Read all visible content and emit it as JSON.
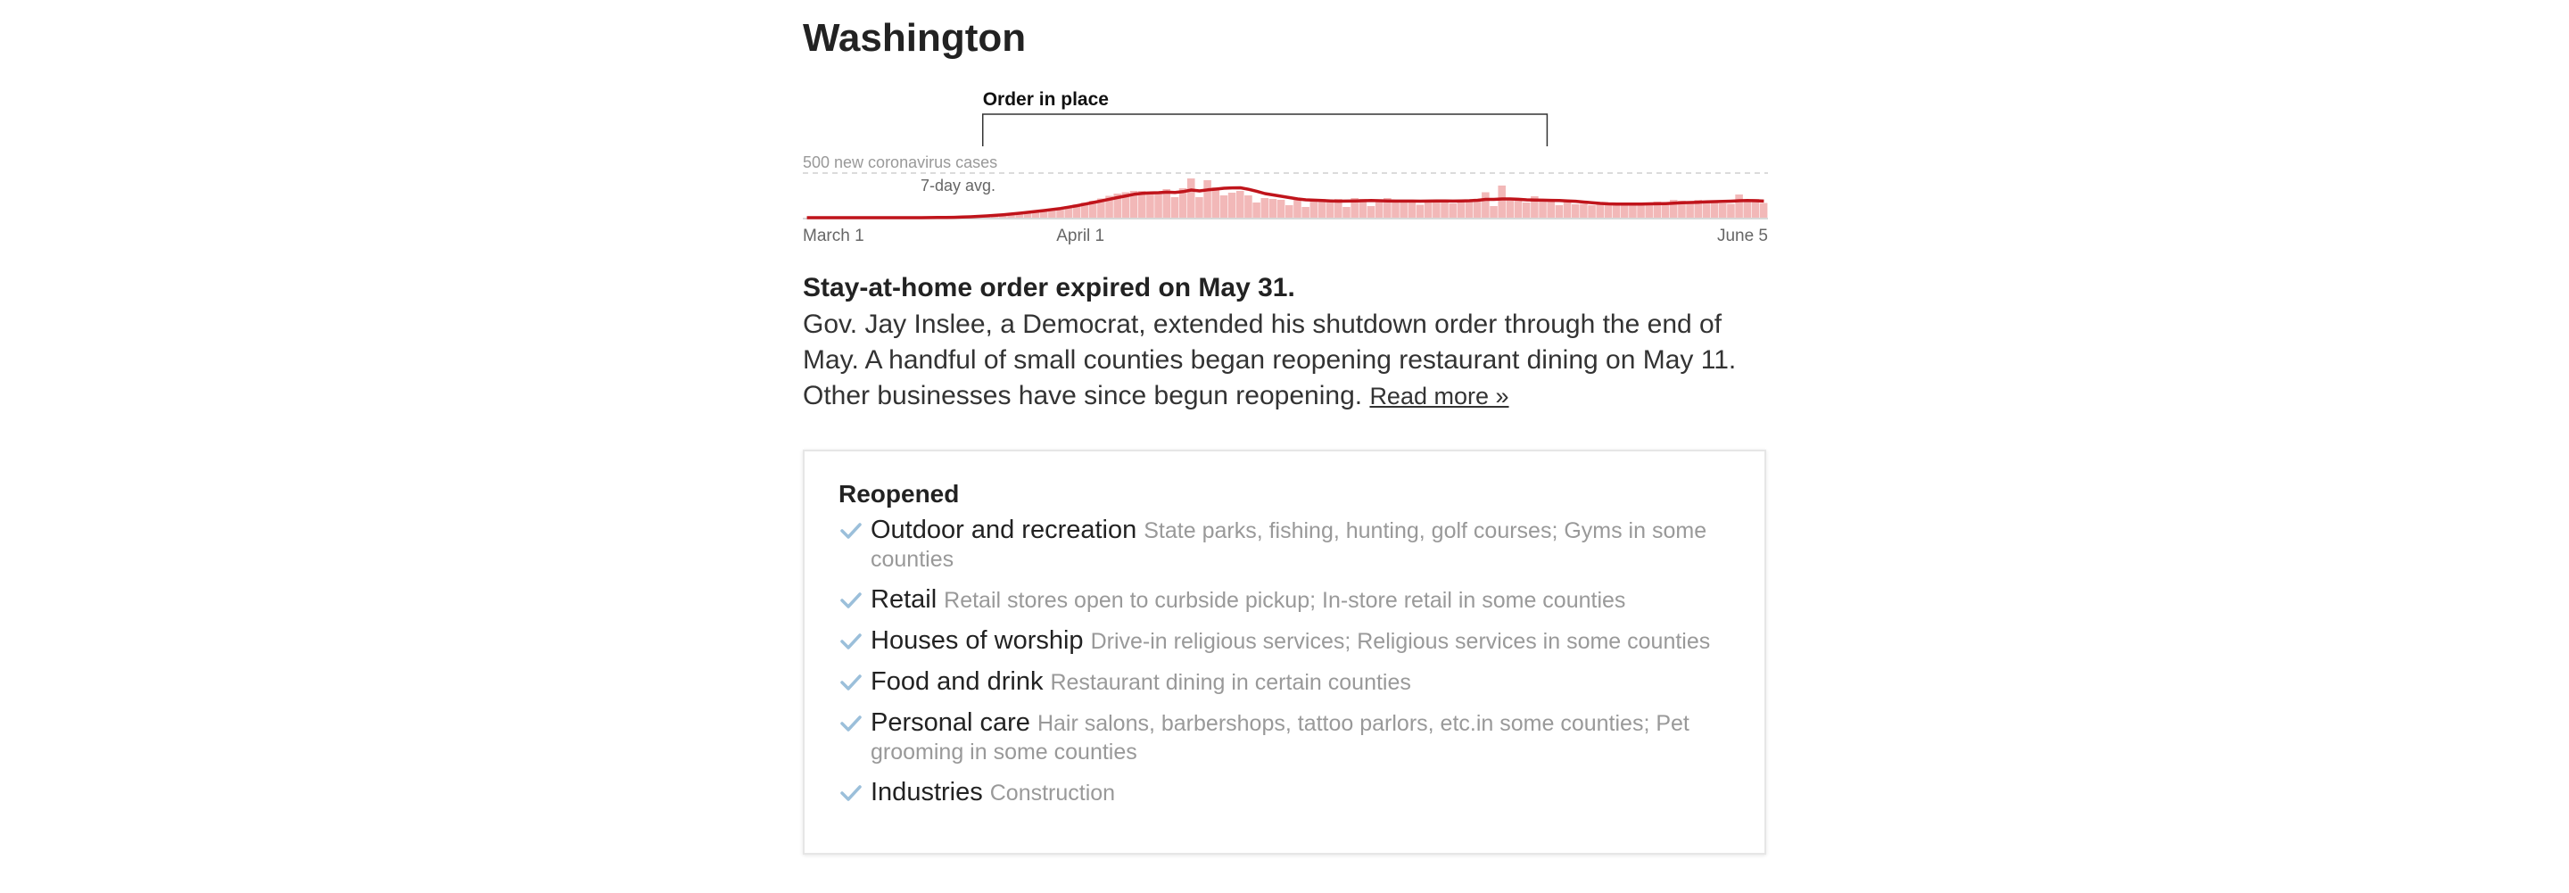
{
  "state": {
    "name": "Washington"
  },
  "colors": {
    "bar": "#f2b8b8",
    "line": "#c0141b",
    "check": "#9bbfda",
    "order_bracket": "#333333"
  },
  "chart_data": {
    "type": "bar",
    "series": [
      {
        "values": [
          0,
          0,
          0,
          0,
          0,
          0,
          0,
          0,
          0,
          0,
          0,
          0,
          0,
          0,
          0,
          1,
          2,
          3,
          5,
          9,
          14,
          18,
          24,
          30,
          38,
          46,
          55,
          65,
          76,
          88,
          100,
          112,
          130,
          148,
          170,
          190,
          215,
          245,
          270,
          285,
          300,
          300,
          295,
          290,
          320,
          230,
          330,
          440,
          230,
          420,
          340,
          250,
          280,
          300,
          250,
          170,
          220,
          210,
          200,
          140,
          210,
          120,
          180,
          210,
          175,
          210,
          120,
          220,
          210,
          130,
          190,
          220,
          170,
          185,
          185,
          145,
          190,
          200,
          180,
          160,
          175,
          190,
          200,
          285,
          130,
          360,
          200,
          210,
          170,
          240,
          180,
          210,
          140,
          180,
          150,
          155,
          140,
          145,
          155,
          160,
          140,
          140,
          160,
          170,
          180,
          150,
          200,
          190,
          175,
          200,
          180,
          165,
          160,
          155,
          260,
          195,
          210,
          165
        ]
      },
      {
        "values": [
          0,
          0,
          0,
          0,
          0,
          0,
          0,
          0,
          0,
          0,
          0,
          0,
          0,
          0,
          0,
          1,
          2,
          3,
          4,
          7,
          10,
          15,
          20,
          26,
          33,
          41,
          50,
          60,
          70,
          80,
          92,
          103,
          118,
          134,
          152,
          170,
          188,
          207,
          226,
          244,
          262,
          272,
          278,
          280,
          286,
          282,
          292,
          310,
          300,
          312,
          320,
          330,
          334,
          335,
          318,
          296,
          270,
          255,
          240,
          225,
          210,
          200,
          196,
          192,
          188,
          185,
          186,
          188,
          190,
          192,
          190,
          188,
          186,
          186,
          186,
          185,
          186,
          188,
          187,
          186,
          188,
          190,
          195,
          205,
          205,
          210,
          210,
          206,
          200,
          198,
          196,
          194,
          192,
          188,
          184,
          175,
          168,
          160,
          155,
          153,
          152,
          152,
          153,
          155,
          156,
          158,
          162,
          167,
          170,
          173,
          177,
          180,
          182,
          185,
          190,
          192,
          190,
          186
        ]
      }
    ],
    "ylim": [
      0,
      1000
    ],
    "reference_value": 500,
    "reference_label": "500 new coronavirus cases",
    "avg_label": "7-day avg.",
    "x_ticks": [
      "March 1",
      "April 1",
      "June 5"
    ],
    "order_annotation": "Order in place",
    "order_range": [
      "Mar 23",
      "May 31"
    ]
  },
  "status": {
    "title": "Stay-at-home order expired on May 31.",
    "body": "Gov. Jay Inslee, a Democrat, extended his shutdown order through the end of May. A handful of small counties began reopening restaurant dining on May 11. Other businesses have since begun reopening.",
    "read_more": "Read more »"
  },
  "reopened": {
    "heading": "Reopened",
    "items": [
      {
        "icon": "check-icon",
        "category": "Outdoor and recreation",
        "detail": "State parks, fishing, hunting, golf courses; Gyms in some counties"
      },
      {
        "icon": "check-icon",
        "category": "Retail",
        "detail": "Retail stores open to curbside pickup; In-store retail in some counties"
      },
      {
        "icon": "check-icon",
        "category": "Houses of worship",
        "detail": "Drive-in religious services; Religious services in some counties"
      },
      {
        "icon": "check-icon",
        "category": "Food and drink",
        "detail": "Restaurant dining in certain counties"
      },
      {
        "icon": "check-icon",
        "category": "Personal care",
        "detail": "Hair salons, barbershops, tattoo parlors, etc.in some counties; Pet grooming in some counties"
      },
      {
        "icon": "check-icon",
        "category": "Industries",
        "detail": "Construction"
      }
    ]
  }
}
